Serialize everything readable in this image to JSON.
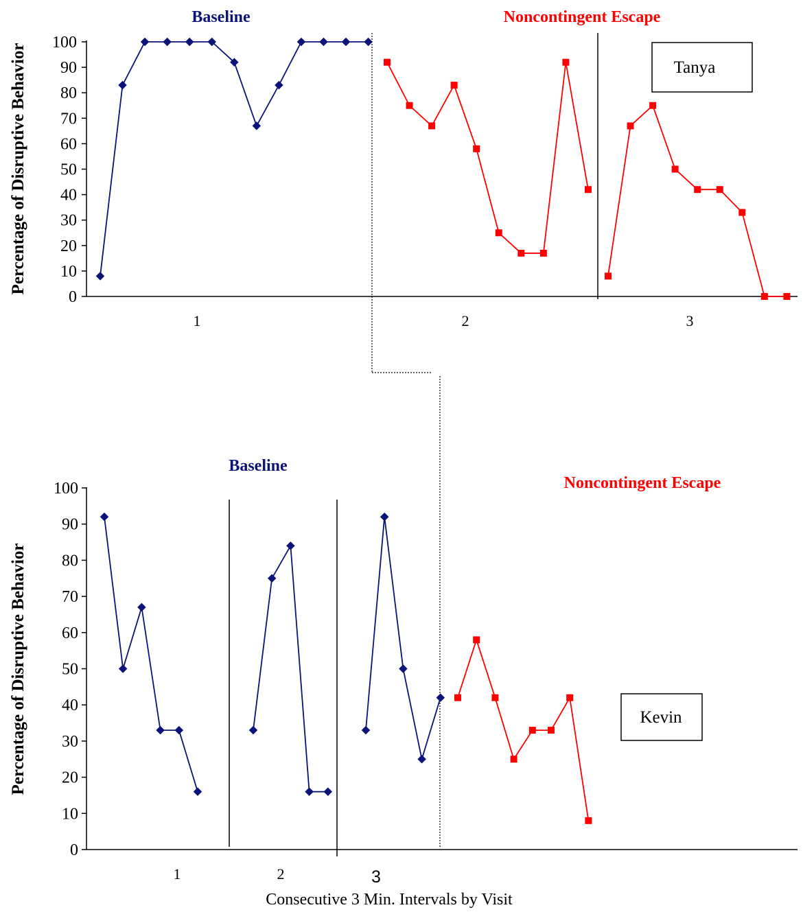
{
  "colors": {
    "baseline": "#0b1278",
    "noncontingent_escape": "#ff0000",
    "axis": "#000000"
  },
  "chart_data": [
    {
      "type": "line",
      "name_label": "Tanya",
      "ylabel": "Percentage of Disruptive Behavior",
      "xlabel": "",
      "ylim": [
        0,
        100
      ],
      "yticks": [
        "0",
        "10",
        "20",
        "30",
        "40",
        "50",
        "60",
        "70",
        "80",
        "90",
        "100"
      ],
      "phase_labels": {
        "baseline": "Baseline",
        "noncontingent_escape": "Noncontingent Escape"
      },
      "visit_labels": [
        "1",
        "2",
        "3"
      ],
      "series": [
        {
          "phase": "baseline",
          "visit": "1",
          "marker": "diamond",
          "values": [
            8,
            83,
            100,
            100,
            100,
            100,
            92,
            67,
            83,
            100,
            100,
            100,
            100
          ]
        },
        {
          "phase": "noncontingent_escape",
          "visit": "2",
          "marker": "square",
          "values": [
            92,
            75,
            67,
            83,
            58,
            25,
            17,
            17,
            92,
            42
          ]
        },
        {
          "phase": "noncontingent_escape",
          "visit": "3",
          "marker": "square",
          "values": [
            8,
            67,
            75,
            50,
            42,
            42,
            33,
            0,
            0
          ]
        }
      ],
      "legend": "top-right box"
    },
    {
      "type": "line",
      "name_label": "Kevin",
      "ylabel": "Percentage of Disruptive Behavior",
      "xlabel": "Consecutive 3 Min. Intervals by Visit",
      "ylim": [
        0,
        100
      ],
      "yticks": [
        "0",
        "10",
        "20",
        "30",
        "40",
        "50",
        "60",
        "70",
        "80",
        "90",
        "100"
      ],
      "phase_labels": {
        "baseline": "Baseline",
        "noncontingent_escape": "Noncontingent Escape"
      },
      "visit_labels": [
        "1",
        "2",
        "3"
      ],
      "series": [
        {
          "phase": "baseline",
          "visit": "1",
          "marker": "diamond",
          "values": [
            92,
            50,
            67,
            33,
            33,
            16
          ]
        },
        {
          "phase": "baseline",
          "visit": "2",
          "marker": "diamond",
          "values": [
            33,
            75,
            84,
            16,
            16
          ]
        },
        {
          "phase": "baseline",
          "visit": "3",
          "marker": "diamond",
          "values": [
            33,
            92,
            50,
            25,
            42
          ]
        },
        {
          "phase": "noncontingent_escape",
          "visit": "3",
          "marker": "square",
          "values": [
            42,
            58,
            42,
            25,
            33,
            33,
            42,
            8
          ]
        }
      ],
      "legend": "right box"
    }
  ]
}
